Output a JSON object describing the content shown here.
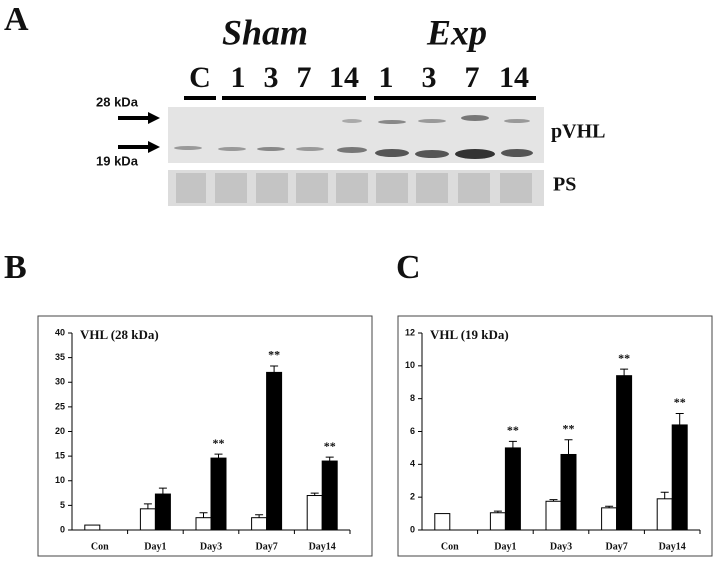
{
  "blot": {
    "panel_label": "A",
    "groups": [
      "Sham",
      "Exp"
    ],
    "lanes": [
      "C",
      "1",
      "3",
      "7",
      "14",
      "1",
      "3",
      "7",
      "14"
    ],
    "markers": [
      "28 kDa",
      "19 kDa"
    ],
    "rows": [
      "pVHL",
      "PS"
    ]
  },
  "chart_data": [
    {
      "type": "bar",
      "panel_label": "B",
      "title": "VHL (28 kDa)",
      "categories": [
        "Con",
        "Day1",
        "Day3",
        "Day7",
        "Day14"
      ],
      "series": [
        {
          "color": "#ffffff",
          "values": [
            1,
            4.3,
            2.5,
            2.5,
            7
          ],
          "errors": [
            0,
            1.0,
            1.0,
            0.6,
            0.5
          ]
        },
        {
          "color": "#000000",
          "values": [
            0,
            7.3,
            14.6,
            32,
            14
          ],
          "errors": [
            0,
            1.2,
            0.8,
            1.3,
            0.8
          ]
        }
      ],
      "significance": [
        null,
        null,
        "**",
        "**",
        "**"
      ],
      "ylim": [
        0,
        40
      ],
      "yticks": [
        0,
        5,
        10,
        15,
        20,
        25,
        30,
        35,
        40
      ]
    },
    {
      "type": "bar",
      "panel_label": "C",
      "title": "VHL (19 kDa)",
      "categories": [
        "Con",
        "Day1",
        "Day3",
        "Day7",
        "Day14"
      ],
      "series": [
        {
          "color": "#ffffff",
          "values": [
            1,
            1.05,
            1.75,
            1.35,
            1.9
          ],
          "errors": [
            0,
            0.1,
            0.1,
            0.1,
            0.4
          ]
        },
        {
          "color": "#000000",
          "values": [
            0,
            5,
            4.6,
            9.4,
            6.4
          ],
          "errors": [
            0,
            0.4,
            0.9,
            0.4,
            0.7
          ]
        }
      ],
      "significance": [
        null,
        "**",
        "**",
        "**",
        "**"
      ],
      "ylim": [
        0,
        12
      ],
      "yticks": [
        0,
        2,
        4,
        6,
        8,
        10,
        12
      ]
    }
  ]
}
